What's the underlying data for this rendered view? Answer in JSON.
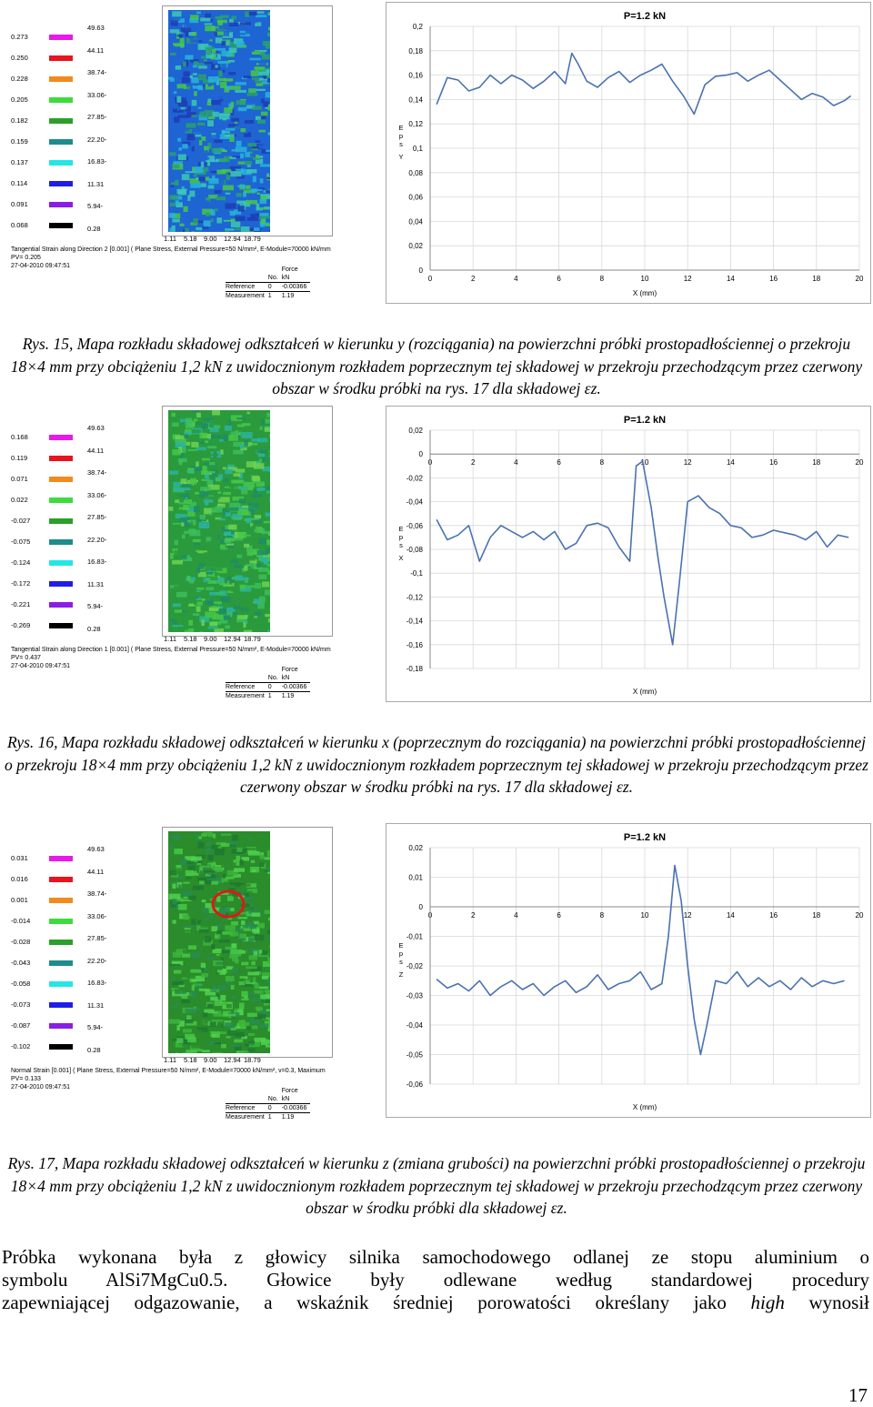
{
  "figures": [
    {
      "legend_values": [
        "0.273",
        "0.250",
        "0.228",
        "0.205",
        "0.182",
        "0.159",
        "0.137",
        "0.114",
        "0.091",
        "0.068"
      ],
      "legend_labels": [
        "49.63",
        "44.11",
        "38.74-",
        "33.06-",
        "27.85-",
        "22.20-",
        "16.83-",
        "11.31",
        "5.94-",
        "0.28"
      ],
      "scale_ticks": [
        "1.11",
        "5.18",
        "9.00",
        "12.94",
        "18.79"
      ],
      "info_line1": "Tangential Strain along Direction 2 [0.001] ( Plane Stress, External Pressure=50 N/mm², E-Module=70000 kN/mm",
      "info_line2": "PV= 0.205",
      "info_line3": "27-04-2010 09:47:51",
      "table": {
        "h_no": "No.",
        "h_force": "Force",
        "h_unit": "kN",
        "r1_name": "Reference",
        "r1_no": "0",
        "r1_val": "-0.00366",
        "r2_name": "Measurement",
        "r2_no": "1",
        "r2_val": "1.19"
      },
      "caption": "Rys. 15, Mapa rozkładu składowej odkształceń w kierunku y (rozciągania) na powierzchni próbki prostopadłościennej o przekroju 18×4 mm przy obciążeniu 1,2 kN z uwidocznionym rozkładem poprzecznym tej składowej w przekroju przechodzącym przez czerwony obszar w środku próbki na rys. 17 dla składowej εz."
    },
    {
      "legend_values": [
        "0.168",
        "0.119",
        "0.071",
        "0.022",
        "-0.027",
        "-0.075",
        "-0.124",
        "-0.172",
        "-0.221",
        "-0.269"
      ],
      "legend_labels": [
        "49.63",
        "44.11",
        "38.74-",
        "33.06-",
        "27.85-",
        "22.20-",
        "16.83-",
        "11.31",
        "5.94-",
        "0.28"
      ],
      "scale_ticks": [
        "1.11",
        "5.18",
        "9.00",
        "12.94",
        "18.79"
      ],
      "info_line1": "Tangential Strain along Direction 1 [0.001] ( Plane Stress, External Pressure=50 N/mm², E-Module=70000 kN/mm",
      "info_line2": "PV= 0.437",
      "info_line3": "27-04-2010 09:47:51",
      "table": {
        "h_no": "No.",
        "h_force": "Force",
        "h_unit": "kN",
        "r1_name": "Reference",
        "r1_no": "0",
        "r1_val": "-0.00366",
        "r2_name": "Measurement",
        "r2_no": "1",
        "r2_val": "1.19"
      },
      "caption": "Rys. 16, Mapa rozkładu składowej odkształceń w kierunku x (poprzecznym do rozciągania) na powierzchni próbki prostopadłościennej o przekroju 18×4 mm przy obciążeniu 1,2 kN z uwidocznionym rozkładem poprzecznym tej składowej w przekroju przechodzącym przez czerwony obszar w środku próbki na rys. 17 dla składowej εz."
    },
    {
      "legend_values": [
        "0.031",
        "0.016",
        "0.001",
        "-0.014",
        "-0.028",
        "-0.043",
        "-0.058",
        "-0.073",
        "-0.087",
        "-0.102"
      ],
      "legend_labels": [
        "49.63",
        "44.11",
        "38.74-",
        "33.06-",
        "27.85-",
        "22.20-",
        "16.83-",
        "11.31",
        "5.94-",
        "0.28"
      ],
      "scale_ticks": [
        "1.11",
        "5.18",
        "9.00",
        "12.94",
        "18.79"
      ],
      "info_line1": "Normal Strain [0.001] ( Plane Stress, External Pressure=50 N/mm², E-Module=70000 kN/mm², v=0.3, Maximum",
      "info_line2": "PV= 0.133",
      "info_line3": "27-04-2010 09:47:51",
      "table": {
        "h_no": "No.",
        "h_force": "Force",
        "h_unit": "kN",
        "r1_name": "Reference",
        "r1_no": "0",
        "r1_val": "-0.00366",
        "r2_name": "Measurement",
        "r2_no": "1",
        "r2_val": "1.19"
      },
      "caption": "Rys. 17, Mapa rozkładu składowej odkształceń w kierunku z (zmiana grubości) na powierzchni próbki prostopadłościennej o przekroju 18×4 mm przy obciążeniu 1,2 kN z uwidocznionym rozkładem poprzecznym tej składowej w przekroju przechodzącym przez czerwony obszar w środku próbki dla składowej εz."
    }
  ],
  "legend_colors": [
    "#e81ae8",
    "#e8141e",
    "#f28a1e",
    "#3cdc3c",
    "#2aa02a",
    "#1e8c8c",
    "#23e6e6",
    "#1e1ee6",
    "#8a1ee6",
    "#000000"
  ],
  "chart_data": [
    {
      "type": "line",
      "title": "P=1.2 kN",
      "xlabel": "X (mm)",
      "ylabel": "Eps Y",
      "xlim": [
        0,
        20
      ],
      "ylim": [
        0,
        0.2
      ],
      "yticks": [
        "0",
        "0,02",
        "0,04",
        "0,06",
        "0,08",
        "0,1",
        "0,12",
        "0,14",
        "0,16",
        "0,18",
        "0,2"
      ],
      "xticks": [
        "0",
        "2",
        "4",
        "6",
        "8",
        "10",
        "12",
        "14",
        "16",
        "18",
        "20"
      ],
      "x": [
        0.3,
        0.8,
        1.3,
        1.8,
        2.3,
        2.8,
        3.3,
        3.8,
        4.3,
        4.8,
        5.3,
        5.8,
        6.3,
        6.6,
        6.9,
        7.3,
        7.8,
        8.3,
        8.8,
        9.3,
        9.8,
        10.3,
        10.8,
        11.3,
        11.8,
        12.3,
        12.8,
        13.3,
        13.8,
        14.3,
        14.8,
        15.3,
        15.8,
        16.3,
        16.8,
        17.3,
        17.8,
        18.3,
        18.8,
        19.3,
        19.6
      ],
      "y": [
        0.136,
        0.158,
        0.156,
        0.147,
        0.15,
        0.16,
        0.153,
        0.16,
        0.156,
        0.149,
        0.155,
        0.163,
        0.153,
        0.178,
        0.169,
        0.155,
        0.15,
        0.158,
        0.163,
        0.154,
        0.16,
        0.164,
        0.169,
        0.155,
        0.143,
        0.128,
        0.152,
        0.159,
        0.16,
        0.162,
        0.155,
        0.16,
        0.164,
        0.156,
        0.148,
        0.14,
        0.145,
        0.142,
        0.135,
        0.139,
        0.143
      ]
    },
    {
      "type": "line",
      "title": "P=1.2 kN",
      "xlabel": "X (mm)",
      "ylabel": "Eps X",
      "xlim": [
        0,
        20
      ],
      "ylim": [
        -0.18,
        0.02
      ],
      "yticks": [
        "0,02",
        "0",
        "-0,02",
        "-0,04",
        "-0,06",
        "-0,08",
        "-0,1",
        "-0,12",
        "-0,14",
        "-0,16",
        "-0,18"
      ],
      "xticks": [
        "0",
        "2",
        "4",
        "6",
        "8",
        "10",
        "12",
        "14",
        "16",
        "18",
        "20"
      ],
      "x": [
        0.3,
        0.8,
        1.3,
        1.8,
        2.3,
        2.8,
        3.3,
        3.8,
        4.3,
        4.8,
        5.3,
        5.8,
        6.3,
        6.8,
        7.3,
        7.8,
        8.3,
        8.8,
        9.3,
        9.6,
        9.9,
        10.3,
        10.6,
        10.9,
        11.3,
        11.6,
        12.0,
        12.5,
        13.0,
        13.5,
        14.0,
        14.5,
        15.0,
        15.5,
        16.0,
        16.5,
        17.0,
        17.5,
        18.0,
        18.5,
        19.0,
        19.5
      ],
      "y": [
        -0.055,
        -0.072,
        -0.068,
        -0.06,
        -0.09,
        -0.07,
        -0.06,
        -0.065,
        -0.07,
        -0.065,
        -0.072,
        -0.065,
        -0.08,
        -0.075,
        -0.06,
        -0.058,
        -0.062,
        -0.078,
        -0.09,
        -0.01,
        -0.006,
        -0.045,
        -0.085,
        -0.12,
        -0.16,
        -0.11,
        -0.04,
        -0.035,
        -0.045,
        -0.05,
        -0.06,
        -0.062,
        -0.07,
        -0.068,
        -0.064,
        -0.066,
        -0.068,
        -0.072,
        -0.065,
        -0.078,
        -0.068,
        -0.07
      ]
    },
    {
      "type": "line",
      "title": "P=1.2 kN",
      "xlabel": "X (mm)",
      "ylabel": "Eps Z",
      "xlim": [
        0,
        20
      ],
      "ylim": [
        -0.06,
        0.02
      ],
      "yticks": [
        "0,02",
        "0,01",
        "0",
        "-0,01",
        "-0,02",
        "-0,03",
        "-0,04",
        "-0,05",
        "-0,06"
      ],
      "xticks": [
        "0",
        "2",
        "4",
        "6",
        "8",
        "10",
        "12",
        "14",
        "16",
        "18",
        "20"
      ],
      "x": [
        0.3,
        0.8,
        1.3,
        1.8,
        2.3,
        2.8,
        3.3,
        3.8,
        4.3,
        4.8,
        5.3,
        5.8,
        6.3,
        6.8,
        7.3,
        7.8,
        8.3,
        8.8,
        9.3,
        9.8,
        10.3,
        10.8,
        11.1,
        11.4,
        11.7,
        12.0,
        12.3,
        12.6,
        12.9,
        13.3,
        13.8,
        14.3,
        14.8,
        15.3,
        15.8,
        16.3,
        16.8,
        17.3,
        17.8,
        18.3,
        18.8,
        19.3
      ],
      "y": [
        -0.0245,
        -0.0275,
        -0.026,
        -0.0285,
        -0.025,
        -0.03,
        -0.027,
        -0.025,
        -0.028,
        -0.026,
        -0.03,
        -0.027,
        -0.025,
        -0.029,
        -0.027,
        -0.023,
        -0.028,
        -0.026,
        -0.025,
        -0.022,
        -0.028,
        -0.026,
        -0.01,
        0.014,
        0.002,
        -0.02,
        -0.038,
        -0.05,
        -0.04,
        -0.025,
        -0.026,
        -0.022,
        -0.027,
        -0.024,
        -0.027,
        -0.025,
        -0.028,
        -0.024,
        -0.027,
        -0.025,
        -0.026,
        -0.025
      ]
    }
  ],
  "body_lines": [
    "Próbka wykonana była z głowicy silnika samochodowego odlanej ze stopu aluminium o",
    "symbolu AlSi7MgCu0.5. Głowice były odlewane według standardowej procedury"
  ],
  "body_line3_before": "zapewniającej odgazowanie, a wskaźnik średniej porowatości określany jako ",
  "body_line3_italic": "high",
  "body_line3_after": " wynosił",
  "page_number": "17"
}
